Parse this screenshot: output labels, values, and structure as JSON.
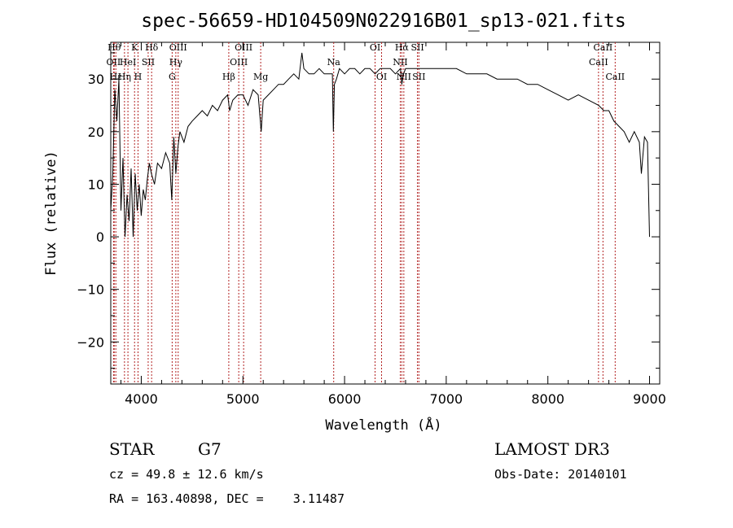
{
  "chart_data": {
    "type": "line",
    "title": "spec-56659-HD104509N022916B01_sp13-021.fits",
    "xlabel": "Wavelength (Å)",
    "ylabel": "Flux (relative)",
    "xlim": [
      3700,
      9100
    ],
    "ylim": [
      -28,
      37
    ],
    "xticks": [
      4000,
      5000,
      6000,
      7000,
      8000,
      9000
    ],
    "yticks": [
      -20,
      -10,
      0,
      10,
      20,
      30
    ],
    "grid": false,
    "line_color": "#000000",
    "marker_color": "#b22222",
    "series": [
      {
        "x": [
          3700,
          3720,
          3740,
          3760,
          3780,
          3800,
          3820,
          3840,
          3860,
          3880,
          3900,
          3920,
          3940,
          3960,
          3980,
          4000,
          4020,
          4040,
          4060,
          4080,
          4100,
          4130,
          4160,
          4200,
          4240,
          4280,
          4300,
          4320,
          4340,
          4360,
          4380,
          4420,
          4460,
          4500,
          4550,
          4600,
          4650,
          4700,
          4750,
          4800,
          4850,
          4870,
          4900,
          4950,
          5000,
          5050,
          5100,
          5150,
          5180,
          5200,
          5250,
          5300,
          5350,
          5400,
          5450,
          5500,
          5550,
          5580,
          5600,
          5650,
          5700,
          5750,
          5800,
          5850,
          5880,
          5890,
          5900,
          5920,
          5950,
          6000,
          6050,
          6100,
          6150,
          6200,
          6250,
          6300,
          6350,
          6400,
          6450,
          6500,
          6550,
          6563,
          6580,
          6600,
          6650,
          6700,
          6750,
          6800,
          6900,
          7000,
          7100,
          7200,
          7300,
          7400,
          7500,
          7600,
          7700,
          7800,
          7900,
          8000,
          8100,
          8200,
          8300,
          8400,
          8500,
          8550,
          8600,
          8650,
          8700,
          8750,
          8800,
          8850,
          8900,
          8920,
          8950,
          8980,
          9000
        ],
        "values": [
          5,
          12,
          28,
          22,
          30,
          5,
          15,
          0,
          8,
          3,
          13,
          0,
          12,
          5,
          10,
          4,
          9,
          7,
          11,
          14,
          12,
          10,
          14,
          13,
          16,
          14,
          7,
          19,
          12,
          17,
          20,
          18,
          21,
          22,
          23,
          24,
          23,
          25,
          24,
          26,
          27,
          24,
          26,
          27,
          27,
          25,
          28,
          27,
          20,
          26,
          27,
          28,
          29,
          29,
          30,
          31,
          30,
          35,
          32,
          31,
          31,
          32,
          31,
          31,
          31,
          20,
          29,
          30,
          32,
          31,
          32,
          32,
          31,
          32,
          32,
          31,
          32,
          32,
          32,
          31,
          32,
          29,
          31,
          32,
          32,
          32,
          32,
          32,
          32,
          32,
          32,
          31,
          31,
          31,
          30,
          30,
          30,
          29,
          29,
          28,
          27,
          26,
          27,
          26,
          25,
          24,
          24,
          22,
          21,
          20,
          18,
          20,
          18,
          12,
          19,
          18,
          0
        ]
      }
    ],
    "spectral_lines": [
      {
        "wavelength": 3734,
        "label": "Hθ",
        "row": 0
      },
      {
        "wavelength": 3727,
        "label": "OII",
        "row": 1
      },
      {
        "wavelength": 3750,
        "label": "Hε",
        "row": 2
      },
      {
        "wavelength": 3835,
        "label": "Hη",
        "row": 2
      },
      {
        "wavelength": 3869,
        "label": "HeI",
        "row": 1
      },
      {
        "wavelength": 3934,
        "label": "K",
        "row": 0
      },
      {
        "wavelength": 3968,
        "label": "H",
        "row": 2
      },
      {
        "wavelength": 4068,
        "label": "SII",
        "row": 1
      },
      {
        "wavelength": 4102,
        "label": "Hδ",
        "row": 0
      },
      {
        "wavelength": 4304,
        "label": "G",
        "row": 2
      },
      {
        "wavelength": 4340,
        "label": "Hγ",
        "row": 1
      },
      {
        "wavelength": 4363,
        "label": "OIII",
        "row": 0
      },
      {
        "wavelength": 4861,
        "label": "Hβ",
        "row": 2
      },
      {
        "wavelength": 4959,
        "label": "OIII",
        "row": 1
      },
      {
        "wavelength": 5007,
        "label": "OIII",
        "row": 0
      },
      {
        "wavelength": 5175,
        "label": "Mg",
        "row": 2
      },
      {
        "wavelength": 5893,
        "label": "Na",
        "row": 1
      },
      {
        "wavelength": 6300,
        "label": "OI",
        "row": 0
      },
      {
        "wavelength": 6364,
        "label": "OI",
        "row": 2
      },
      {
        "wavelength": 6548,
        "label": "NII",
        "row": 1
      },
      {
        "wavelength": 6563,
        "label": "Hα",
        "row": 0
      },
      {
        "wavelength": 6583,
        "label": "NII",
        "row": 2
      },
      {
        "wavelength": 6717,
        "label": "SII",
        "row": 0
      },
      {
        "wavelength": 6731,
        "label": "SII",
        "row": 2
      },
      {
        "wavelength": 8498,
        "label": "CaII",
        "row": 1
      },
      {
        "wavelength": 8542,
        "label": "CaII",
        "row": 0
      },
      {
        "wavelength": 8662,
        "label": "CaII",
        "row": 2
      }
    ]
  },
  "info": {
    "object_type": "STAR",
    "subclass": "G7",
    "survey": "LAMOST DR3",
    "cz": "cz = 49.8 ± 12.6 km/s",
    "obs_date": "Obs-Date: 20140101",
    "coords": "RA = 163.40898, DEC =    3.11487"
  }
}
